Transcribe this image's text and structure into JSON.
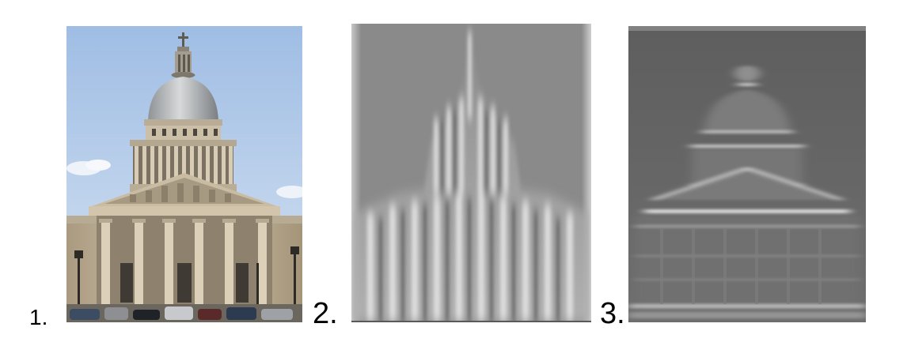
{
  "labels": {
    "panel_1": "1.",
    "panel_2": "2.",
    "panel_3": "3."
  },
  "colors": {
    "sky": "#b8d0ec",
    "stone": "#cdbfa6",
    "filter_gray_2": "#8d8d8d",
    "filter_gray_3": "#6e6e6e"
  }
}
